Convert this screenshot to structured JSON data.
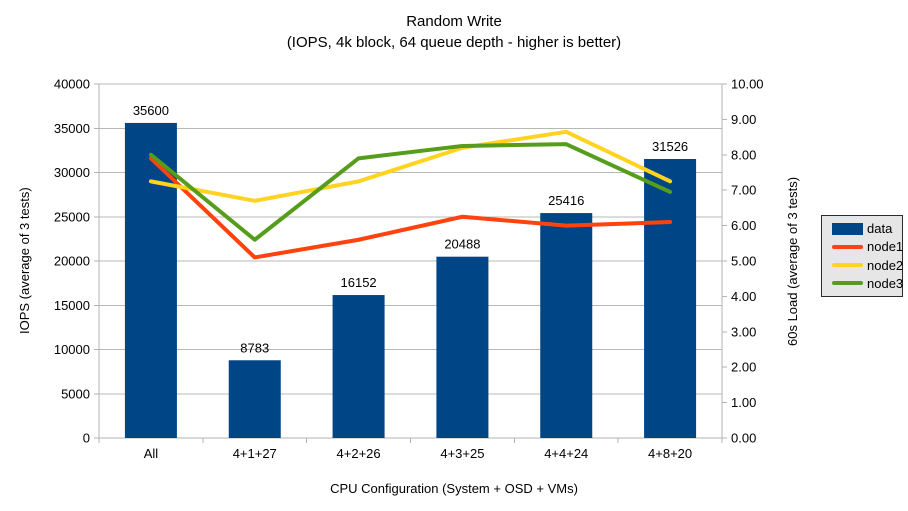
{
  "chart_data": {
    "type": "combo bar+line",
    "title": "Random Write",
    "subtitle": "(IOPS, 4k block, 64 queue depth - higher is better)",
    "categories": [
      "All",
      "4+1+27",
      "4+2+26",
      "4+3+25",
      "4+4+24",
      "4+8+20"
    ],
    "xlabel": "CPU Configuration (System + OSD + VMs)",
    "grid": "horizontal",
    "legend_position": "right",
    "left_axis": {
      "label": "IOPS (average of 3 tests)",
      "min": 0,
      "max": 40000,
      "tick_step": 5000
    },
    "right_axis": {
      "label": "60s Load (average of 3 tests)",
      "min": 0,
      "max": 10,
      "tick_step": 1,
      "tick_decimals": 2
    },
    "bar_series": {
      "name": "data",
      "axis": "left",
      "color": "#004586",
      "values": [
        35600,
        8783,
        16152,
        20488,
        25416,
        31526
      ]
    },
    "line_series": {
      "axis": "right",
      "series": [
        {
          "name": "node1",
          "color": "#ff420e",
          "values": [
            7.9,
            5.1,
            5.6,
            6.25,
            6.0,
            6.1
          ]
        },
        {
          "name": "node2",
          "color": "#ffd320",
          "values": [
            7.25,
            6.7,
            7.25,
            8.2,
            8.65,
            7.25
          ]
        },
        {
          "name": "node3",
          "color": "#579d1c",
          "values": [
            8.0,
            5.6,
            7.9,
            8.25,
            8.3,
            6.95
          ]
        }
      ]
    }
  },
  "colors": {
    "grid": "#b8b8b8",
    "axis": "#b3b3b3",
    "text": "#000000",
    "legend_bg": "#e6e6e6",
    "legend_border": "#2b2b2b"
  }
}
